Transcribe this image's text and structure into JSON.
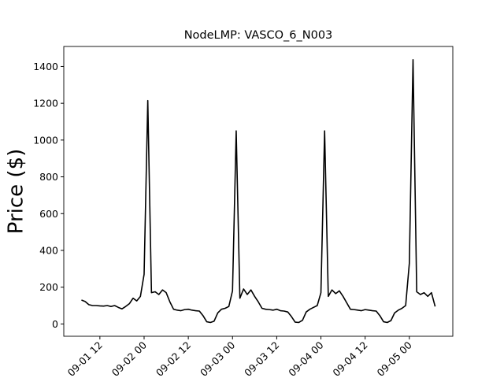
{
  "chart_data": {
    "type": "line",
    "title": "NodeLMP: VASCO_6_N003",
    "y_label": "Price ($)",
    "color": "#000000",
    "x": [
      "09-01 07:00",
      "09-01 08:00",
      "09-01 09:00",
      "09-01 10:00",
      "09-01 11:00",
      "09-01 12:00",
      "09-01 13:00",
      "09-01 14:00",
      "09-01 15:00",
      "09-01 16:00",
      "09-01 17:00",
      "09-01 18:00",
      "09-01 19:00",
      "09-01 20:00",
      "09-01 21:00",
      "09-01 22:00",
      "09-01 23:00",
      "09-02 00:00",
      "09-02 01:00",
      "09-02 02:00",
      "09-02 03:00",
      "09-02 04:00",
      "09-02 05:00",
      "09-02 06:00",
      "09-02 07:00",
      "09-02 08:00",
      "09-02 09:00",
      "09-02 10:00",
      "09-02 11:00",
      "09-02 12:00",
      "09-02 13:00",
      "09-02 14:00",
      "09-02 15:00",
      "09-02 16:00",
      "09-02 17:00",
      "09-02 18:00",
      "09-02 19:00",
      "09-02 20:00",
      "09-02 21:00",
      "09-02 22:00",
      "09-02 23:00",
      "09-03 00:00",
      "09-03 01:00",
      "09-03 02:00",
      "09-03 03:00",
      "09-03 04:00",
      "09-03 05:00",
      "09-03 06:00",
      "09-03 07:00",
      "09-03 08:00",
      "09-03 09:00",
      "09-03 10:00",
      "09-03 11:00",
      "09-03 12:00",
      "09-03 13:00",
      "09-03 14:00",
      "09-03 15:00",
      "09-03 16:00",
      "09-03 17:00",
      "09-03 18:00",
      "09-03 19:00",
      "09-03 20:00",
      "09-03 21:00",
      "09-03 22:00",
      "09-03 23:00",
      "09-04 00:00",
      "09-04 01:00",
      "09-04 02:00",
      "09-04 03:00",
      "09-04 04:00",
      "09-04 05:00",
      "09-04 06:00",
      "09-04 07:00",
      "09-04 08:00",
      "09-04 09:00",
      "09-04 10:00",
      "09-04 11:00",
      "09-04 12:00",
      "09-04 13:00",
      "09-04 14:00",
      "09-04 15:00",
      "09-04 16:00",
      "09-04 17:00",
      "09-04 18:00",
      "09-04 19:00",
      "09-04 20:00",
      "09-04 21:00",
      "09-04 22:00",
      "09-04 23:00",
      "09-05 00:00",
      "09-05 01:00",
      "09-05 02:00",
      "09-05 03:00",
      "09-05 04:00",
      "09-05 05:00",
      "09-05 06:00",
      "09-05 07:00"
    ],
    "values": [
      130,
      122,
      105,
      100,
      100,
      98,
      97,
      100,
      95,
      100,
      90,
      82,
      95,
      110,
      140,
      125,
      150,
      270,
      1215,
      170,
      175,
      160,
      185,
      170,
      120,
      80,
      75,
      72,
      78,
      80,
      75,
      72,
      70,
      45,
      12,
      8,
      15,
      60,
      80,
      85,
      95,
      180,
      1050,
      140,
      190,
      160,
      185,
      150,
      120,
      85,
      80,
      78,
      75,
      80,
      72,
      70,
      65,
      40,
      10,
      8,
      20,
      65,
      80,
      90,
      100,
      170,
      1050,
      150,
      185,
      165,
      180,
      150,
      115,
      80,
      78,
      75,
      72,
      78,
      75,
      72,
      70,
      45,
      12,
      8,
      18,
      60,
      75,
      85,
      100,
      330,
      1437,
      175,
      160,
      170,
      150,
      170,
      95
    ],
    "xlim": [
      "09-01 02:12",
      "09-05 11:48"
    ],
    "xticks": [
      {
        "value": "09-01 12:00",
        "label": "09-01 12"
      },
      {
        "value": "09-02 00:00",
        "label": "09-02 00"
      },
      {
        "value": "09-02 12:00",
        "label": "09-02 12"
      },
      {
        "value": "09-03 00:00",
        "label": "09-03 00"
      },
      {
        "value": "09-03 12:00",
        "label": "09-03 12"
      },
      {
        "value": "09-04 00:00",
        "label": "09-04 00"
      },
      {
        "value": "09-04 12:00",
        "label": "09-04 12"
      },
      {
        "value": "09-05 00:00",
        "label": "09-05 00"
      }
    ],
    "ylim": [
      -67,
      1509
    ],
    "yticks": [
      0,
      200,
      400,
      600,
      800,
      1000,
      1200,
      1400
    ]
  }
}
